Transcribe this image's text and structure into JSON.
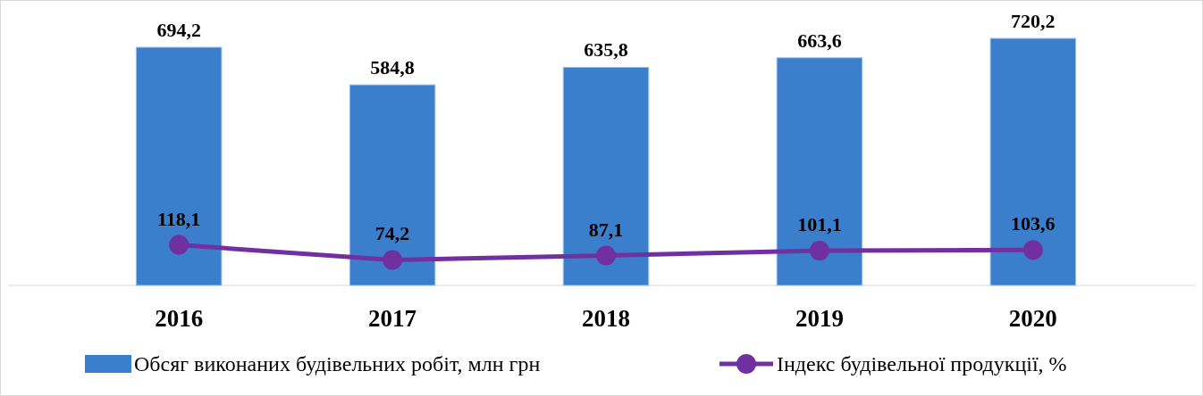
{
  "chart_data": {
    "type": "bar",
    "categories": [
      "2016",
      "2017",
      "2018",
      "2019",
      "2020"
    ],
    "tick_labels": "x",
    "legend": "bottom",
    "series": [
      {
        "name": "Обсяг виконаних будівельних робіт, млн грн",
        "color": "#3b7fcc",
        "values": [
          694.2,
          584.8,
          635.8,
          663.6,
          720.2
        ],
        "value_labels": [
          "694,2",
          "584,8",
          "635,8",
          "663,6",
          "720,2"
        ]
      },
      {
        "name": "Індекс будівельної продукції, %",
        "type": "line",
        "color": "#7030a0",
        "marker": "circle",
        "values": [
          118.1,
          74.2,
          87.1,
          101.1,
          103.6
        ],
        "value_labels": [
          "118,1",
          "74,2",
          "87,1",
          "101,1",
          "103,6"
        ]
      }
    ]
  }
}
